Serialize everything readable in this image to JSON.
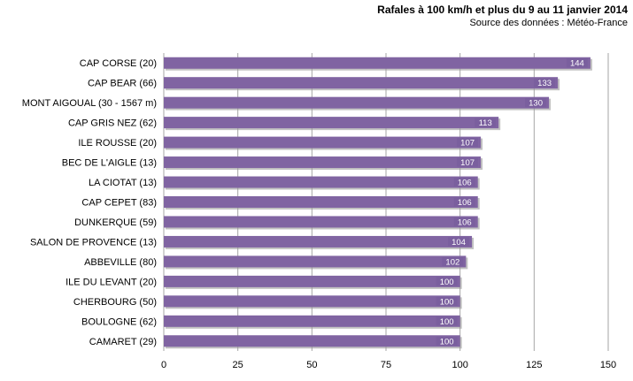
{
  "title": "Rafales à 100 km/h et plus du 9 au 11 janvier 2014",
  "subtitle": "Source des  données : Météo-France",
  "colors": {
    "bar": "#8064a2",
    "bar_shadow": "#9a9a9a",
    "grid": "#a6a6a6",
    "label_box": "#7a5f9e"
  },
  "chart_data": {
    "type": "bar",
    "orientation": "horizontal",
    "categories": [
      "CAP CORSE (20)",
      "CAP BEAR (66)",
      "MONT AIGOUAL (30 - 1567 m)",
      "CAP GRIS NEZ (62)",
      "ILE ROUSSE (20)",
      "BEC DE L'AIGLE (13)",
      "LA CIOTAT (13)",
      "CAP CEPET (83)",
      "DUNKERQUE (59)",
      "SALON DE PROVENCE (13)",
      "ABBEVILLE (80)",
      "ILE DU LEVANT (20)",
      "CHERBOURG (50)",
      "BOULOGNE (62)",
      "CAMARET (29)"
    ],
    "values": [
      144,
      133,
      130,
      113,
      107,
      107,
      106,
      106,
      106,
      104,
      102,
      100,
      100,
      100,
      100
    ],
    "xlim": [
      0,
      150
    ],
    "xticks": [
      "0",
      "25",
      "50",
      "75",
      "100",
      "125",
      "150"
    ],
    "grid": "vertical"
  }
}
